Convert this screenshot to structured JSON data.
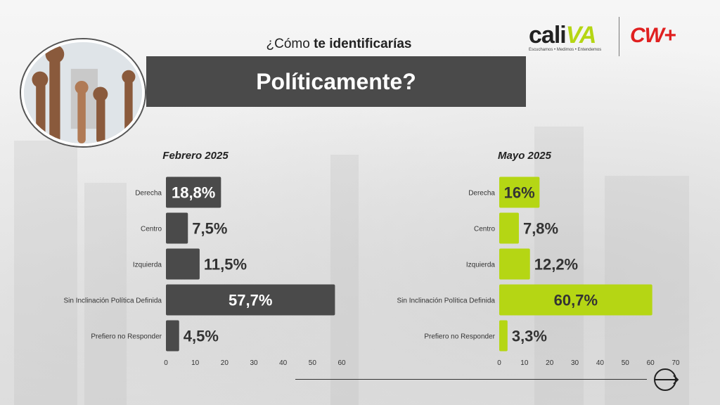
{
  "header": {
    "question_prefix": "¿Cómo ",
    "question_bold": "te identificarías",
    "title": "Políticamente?"
  },
  "logos": {
    "cali_word_a": "cali",
    "cali_word_b": "VA",
    "cali_tagline": "Escuchamos • Medimos • Entendemos",
    "cw": "CW+"
  },
  "colors": {
    "feb_bar": "#4a4a4a",
    "may_bar": "#b5d614",
    "title_bar": "#4a4a4a",
    "cw_red": "#e02020"
  },
  "chart_data": [
    {
      "type": "bar",
      "orientation": "horizontal",
      "title": "Febrero 2025",
      "categories": [
        "Derecha",
        "Centro",
        "Izquierda",
        "Sin Inclinación Política Definida",
        "Prefiero no Responder"
      ],
      "values": [
        18.8,
        7.5,
        11.5,
        57.7,
        4.5
      ],
      "value_labels": [
        "18,8%",
        "7,5%",
        "11,5%",
        "57,7%",
        "4,5%"
      ],
      "xlim": [
        0,
        60
      ],
      "xticks": [
        "0",
        "10",
        "20",
        "30",
        "40",
        "50",
        "60"
      ],
      "color": "#4a4a4a"
    },
    {
      "type": "bar",
      "orientation": "horizontal",
      "title": "Mayo 2025",
      "categories": [
        "Derecha",
        "Centro",
        "Izquierda",
        "Sin Inclinación Política Definida",
        "Prefiero no Responder"
      ],
      "values": [
        16,
        7.8,
        12.2,
        60.7,
        3.3
      ],
      "value_labels": [
        "16%",
        "7,8%",
        "12,2%",
        "60,7%",
        "3,3%"
      ],
      "xlim": [
        0,
        70
      ],
      "xticks": [
        "0",
        "10",
        "20",
        "30",
        "40",
        "50",
        "60",
        "70"
      ],
      "color": "#b5d614"
    }
  ]
}
